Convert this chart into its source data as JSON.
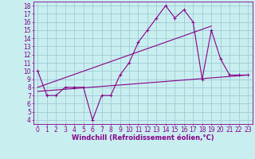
{
  "xlabel": "Windchill (Refroidissement éolien,°C)",
  "bg_color": "#c8eef0",
  "grid_color": "#a0ccd4",
  "line_color": "#880088",
  "xlim": [
    -0.5,
    23.5
  ],
  "ylim": [
    3.5,
    18.5
  ],
  "xticks": [
    0,
    1,
    2,
    3,
    4,
    5,
    6,
    7,
    8,
    9,
    10,
    11,
    12,
    13,
    14,
    15,
    16,
    17,
    18,
    19,
    20,
    21,
    22,
    23
  ],
  "yticks": [
    4,
    5,
    6,
    7,
    8,
    9,
    10,
    11,
    12,
    13,
    14,
    15,
    16,
    17,
    18
  ],
  "data_x": [
    0,
    1,
    2,
    3,
    4,
    5,
    6,
    7,
    8,
    9,
    10,
    11,
    12,
    13,
    14,
    15,
    16,
    17,
    18,
    19,
    20,
    21,
    22,
    23
  ],
  "data_y": [
    10,
    7,
    7,
    8,
    8,
    8,
    4,
    7,
    7,
    9.5,
    11,
    13.5,
    15,
    16.5,
    18,
    16.5,
    17.5,
    16,
    9,
    15,
    11.5,
    9.5,
    9.5,
    9.5
  ],
  "line1_x": [
    0,
    23
  ],
  "line1_y": [
    7.5,
    9.5
  ],
  "line2_x": [
    0,
    19
  ],
  "line2_y": [
    8.0,
    15.5
  ],
  "font_size_label": 6.0,
  "tick_fontsize": 5.5
}
